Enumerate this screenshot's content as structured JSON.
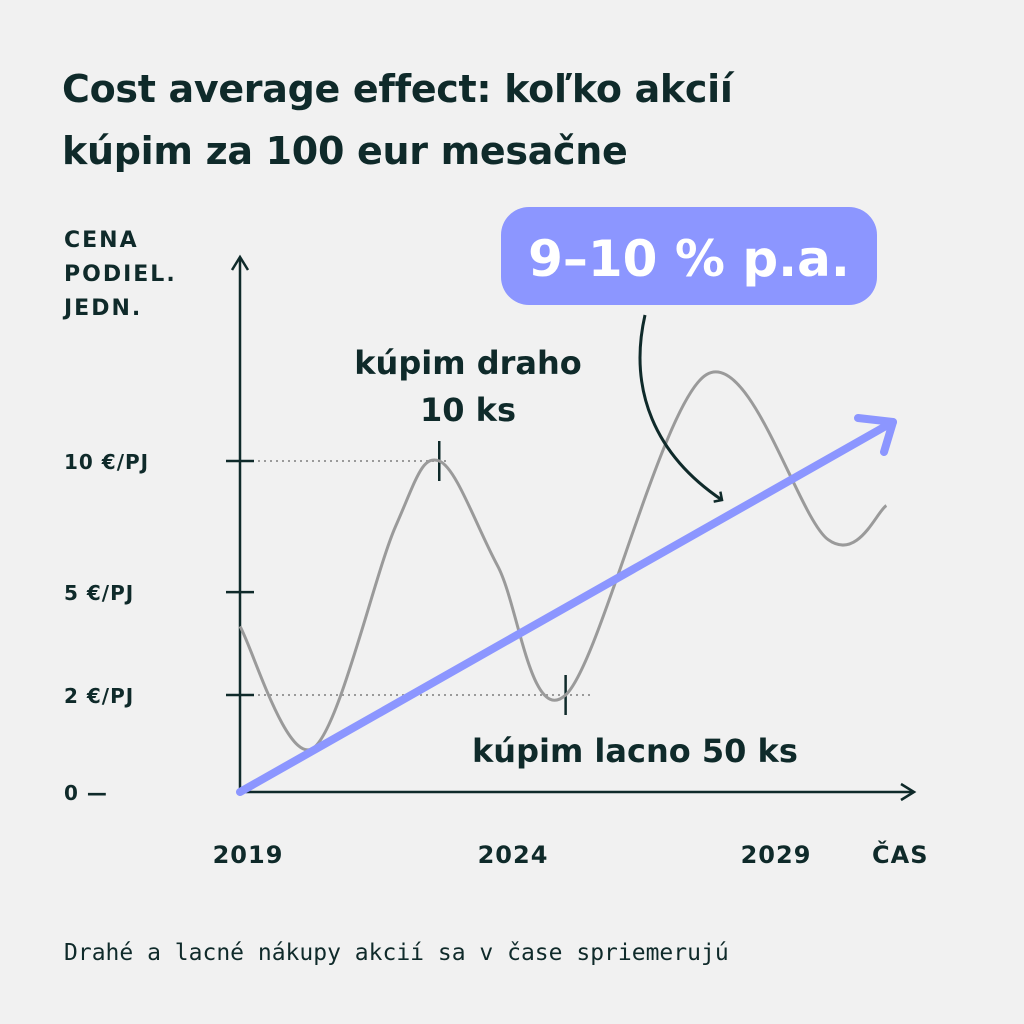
{
  "title": {
    "line1": "Cost average effect: koľko akcií",
    "line2": "kúpim za 100 eur mesačne"
  },
  "caption": "Drahé a lacné nákupy akcií sa v čase spriemerujú",
  "colors": {
    "background": "#f1f1f1",
    "text": "#0f2a2a",
    "trend": "#8c96ff",
    "price_line": "#9a9a9a"
  },
  "chart_data": {
    "type": "line",
    "title": "Cost average effect: koľko akcií kúpim za 100 eur mesačne",
    "ylabel": [
      "CENA",
      "PODIEL.",
      "JEDN."
    ],
    "xlabel": "ČAS",
    "y_ticks": [
      {
        "value": 0,
        "label": "0 —"
      },
      {
        "value": 2,
        "label": "2 €/PJ"
      },
      {
        "value": 5,
        "label": "5 €/PJ"
      },
      {
        "value": 10,
        "label": "10 €/PJ"
      }
    ],
    "x_ticks": [
      {
        "value": 2019,
        "label": "2019"
      },
      {
        "value": 2024,
        "label": "2024"
      },
      {
        "value": 2029,
        "label": "2029"
      }
    ],
    "ylim": [
      0,
      16
    ],
    "xlim": [
      2019,
      2032
    ],
    "series": [
      {
        "style": "price",
        "x": [
          2019,
          2020.5,
          2022.2,
          2023.1,
          2024.3,
          2025.7,
          2028.6,
          2031.1,
          2032.3
        ],
        "y": [
          4,
          0.9,
          7.5,
          10,
          6,
          2,
          13.3,
          7,
          8.3
        ]
      },
      {
        "style": "trend",
        "x": [
          2019,
          2031.6
        ],
        "y": [
          0,
          11.5
        ]
      }
    ],
    "annotations": {
      "expensive": {
        "line1": "kúpim draho",
        "line2": "10 ks",
        "x": 2023.1,
        "y": 10
      },
      "cheap": {
        "text": "kúpim lacno  50 ks",
        "x": 2025.7,
        "y": 2
      },
      "badge": "9–10 % p.a."
    }
  }
}
